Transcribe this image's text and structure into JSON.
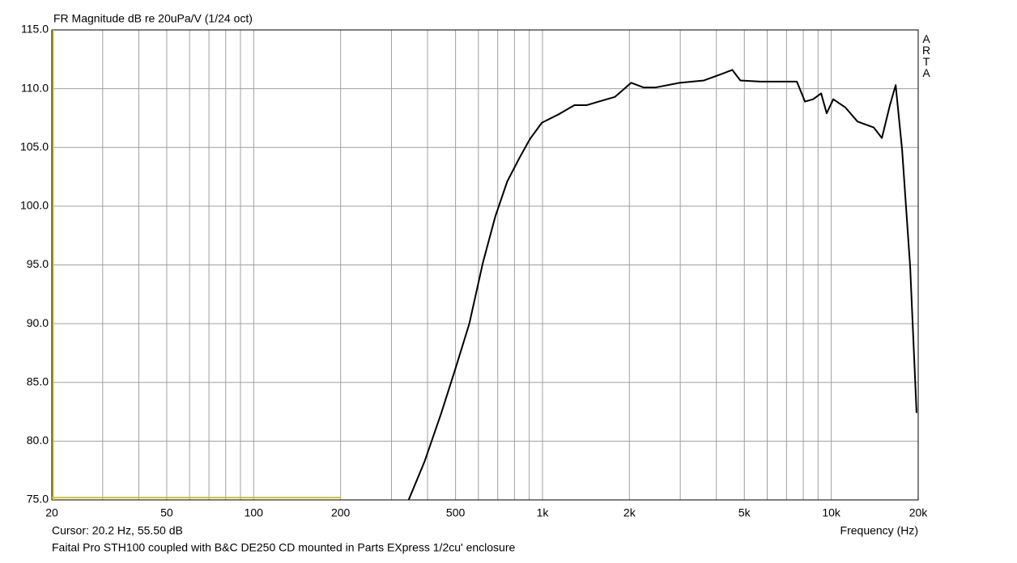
{
  "chart_data": {
    "type": "line",
    "title": "FR Magnitude dB re 20uPa/V (1/24 oct)",
    "brand": "ARTA",
    "cursor_text": "Cursor: 20.2 Hz, 55.50 dB",
    "x_label": "Frequency (Hz)",
    "caption": "Faital Pro STH100 coupled with B&C DE250 CD mounted in Parts EXpress 1/2cu' enclosure",
    "x_scale": "log",
    "xlim": [
      20,
      20000
    ],
    "ylim": [
      75,
      115
    ],
    "xticks": [
      20,
      50,
      100,
      200,
      500,
      {
        "value": 1000,
        "label": "1k"
      },
      {
        "value": 2000,
        "label": "2k"
      },
      {
        "value": 5000,
        "label": "5k"
      },
      {
        "value": 10000,
        "label": "10k"
      },
      {
        "value": 20000,
        "label": "20k"
      }
    ],
    "x_minor_grid": [
      30,
      40,
      60,
      70,
      80,
      90,
      300,
      400,
      600,
      700,
      800,
      900,
      3000,
      4000,
      6000,
      7000,
      8000,
      9000
    ],
    "yticks": [
      {
        "value": 75,
        "label": "75.0"
      },
      {
        "value": 80,
        "label": "80.0"
      },
      {
        "value": 85,
        "label": "85.0"
      },
      {
        "value": 90,
        "label": "90.0"
      },
      {
        "value": 95,
        "label": "95.0"
      },
      {
        "value": 100,
        "label": "100.0"
      },
      {
        "value": 105,
        "label": "105.0"
      },
      {
        "value": 110,
        "label": "110.0"
      },
      {
        "value": 115,
        "label": "115.0"
      }
    ],
    "grid": true,
    "grid_color": "#a0a0a0",
    "color": "#000000",
    "cursor_color": "#c8c832",
    "cursor_x": 20.2,
    "cursor_band": [
      20,
      200
    ],
    "cursor_band_y": 75.2,
    "x": [
      344,
      391,
      445,
      500,
      558,
      622,
      686,
      755,
      832,
      904,
      995,
      1134,
      1290,
      1425,
      1566,
      1782,
      2028,
      2241,
      2459,
      2985,
      3622,
      4120,
      4540,
      4844,
      5690,
      6683,
      7600,
      8110,
      8650,
      9224,
      9640,
      10160,
      11190,
      12330,
      14030,
      14970,
      15960,
      16710,
      17590,
      18760,
      19740
    ],
    "values": [
      75.0,
      78.3,
      82.3,
      86.2,
      90.0,
      95.2,
      99.1,
      102.1,
      104.1,
      105.7,
      107.1,
      107.8,
      108.6,
      108.6,
      108.9,
      109.3,
      110.5,
      110.1,
      110.1,
      110.5,
      110.7,
      111.2,
      111.6,
      110.7,
      110.6,
      110.6,
      110.6,
      108.9,
      109.1,
      109.6,
      107.9,
      109.1,
      108.4,
      107.2,
      106.7,
      105.8,
      108.6,
      110.3,
      104.8,
      94.8,
      82.4
    ]
  }
}
